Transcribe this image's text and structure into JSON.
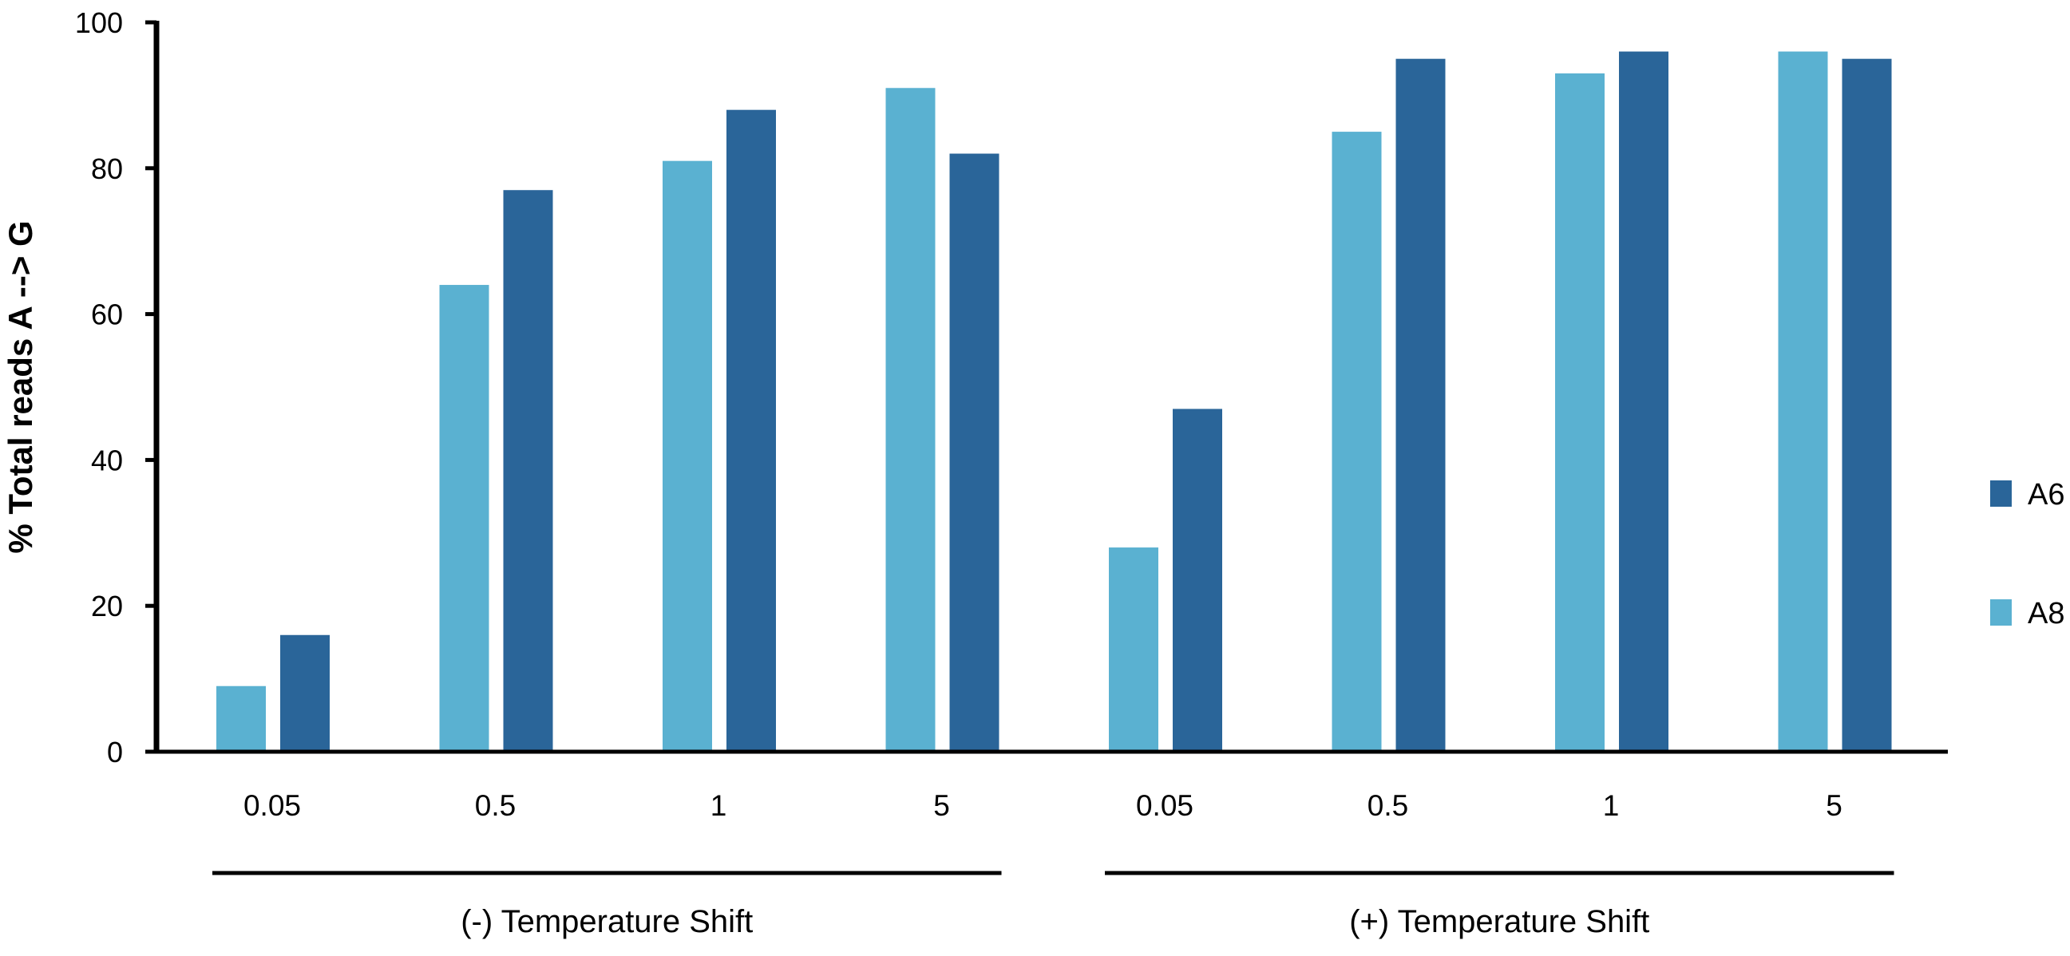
{
  "chart_data": {
    "type": "bar",
    "title": "",
    "ylabel": "% Total reads A --> G",
    "xlabel": "",
    "ylim": [
      0,
      100
    ],
    "yticks": [
      "0",
      "20",
      "40",
      "60",
      "80",
      "100"
    ],
    "grid": false,
    "legend_position": "right",
    "categories": [
      "0.05",
      "0.5",
      "1",
      "5",
      "0.05",
      "0.5",
      "1",
      "5"
    ],
    "groups": [
      {
        "label": "(-) Temperature Shift",
        "categories": [
          0,
          1,
          2,
          3
        ]
      },
      {
        "label": "(+) Temperature Shift",
        "categories": [
          4,
          5,
          6,
          7
        ]
      }
    ],
    "series": [
      {
        "name": "A8",
        "color": "#5ab1d1",
        "values": [
          9,
          64,
          81,
          91,
          28,
          85,
          93,
          96
        ]
      },
      {
        "name": "A6",
        "color": "#2a6599",
        "values": [
          16,
          77,
          88,
          82,
          47,
          95,
          96,
          95
        ]
      }
    ],
    "legend_order": [
      "A6",
      "A8"
    ]
  }
}
